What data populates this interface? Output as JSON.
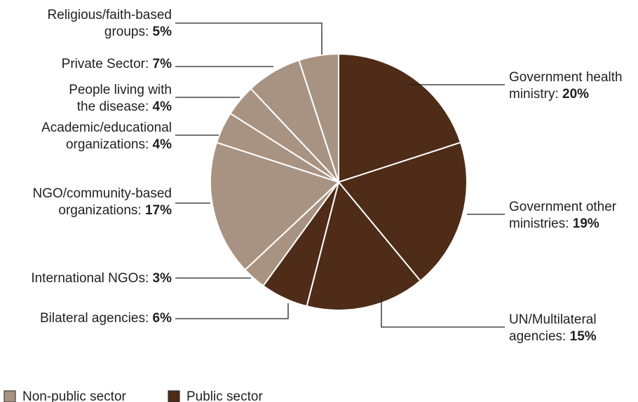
{
  "chart_data": {
    "type": "pie",
    "title": "",
    "slices": [
      {
        "name": "Government health ministry",
        "label_lines": [
          "Government health",
          "ministry: "
        ],
        "pct_text": "20%",
        "value": 20,
        "group": "public"
      },
      {
        "name": "Government other ministries",
        "label_lines": [
          "Government other",
          "ministries: "
        ],
        "pct_text": "19%",
        "value": 19,
        "group": "public"
      },
      {
        "name": "UN/Multilateral agencies",
        "label_lines": [
          "UN/Multilateral",
          "agencies: "
        ],
        "pct_text": "15%",
        "value": 15,
        "group": "public"
      },
      {
        "name": "Bilateral agencies",
        "label_lines": [
          "Bilateral agencies: "
        ],
        "pct_text": "6%",
        "value": 6,
        "group": "public"
      },
      {
        "name": "International NGOs",
        "label_lines": [
          "International NGOs: "
        ],
        "pct_text": "3%",
        "value": 3,
        "group": "nonpublic"
      },
      {
        "name": "NGO/community-based organizations",
        "label_lines": [
          "NGO/community-based",
          "organizations: "
        ],
        "pct_text": "17%",
        "value": 17,
        "group": "nonpublic"
      },
      {
        "name": "Academic/educational organizations",
        "label_lines": [
          "Academic/educational",
          "organizations: "
        ],
        "pct_text": "4%",
        "value": 4,
        "group": "nonpublic"
      },
      {
        "name": "People living with the disease",
        "label_lines": [
          "People living with",
          "the disease: "
        ],
        "pct_text": "4%",
        "value": 4,
        "group": "nonpublic"
      },
      {
        "name": "Private Sector",
        "label_lines": [
          "Private Sector: "
        ],
        "pct_text": "7%",
        "value": 7,
        "group": "nonpublic"
      },
      {
        "name": "Religious/faith-based groups",
        "label_lines": [
          "Religious/faith-based",
          "groups: "
        ],
        "pct_text": "5%",
        "value": 5,
        "group": "nonpublic"
      }
    ],
    "legend": [
      {
        "key": "nonpublic",
        "label": "Non-public sector"
      },
      {
        "key": "public",
        "label": "Public sector"
      }
    ],
    "legend_position": "bottom-left",
    "colors": {
      "public": "#4e2c17",
      "nonpublic": "#a89383",
      "slice_border": "#ffffff",
      "leader": "#231f20",
      "text": "#231f20"
    }
  }
}
